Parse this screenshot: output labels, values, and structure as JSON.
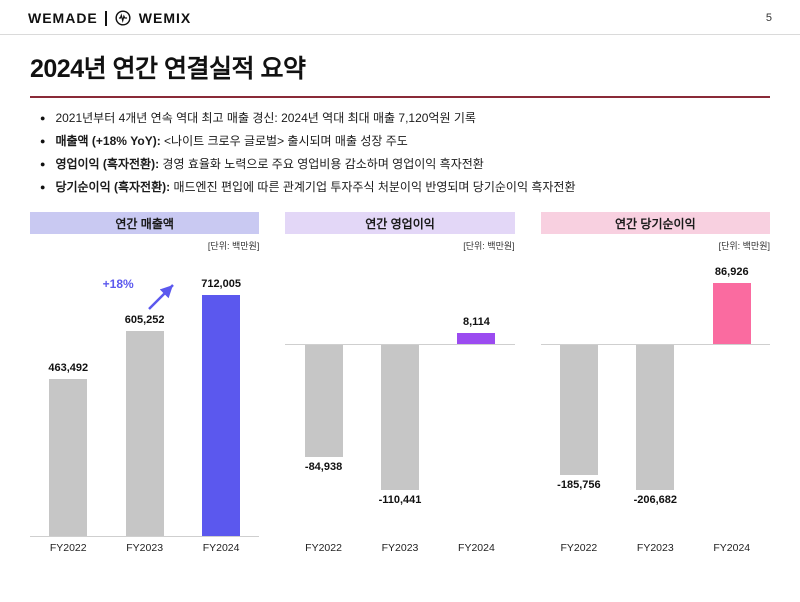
{
  "header": {
    "logo_wemade": "WEMADE",
    "logo_wemix": "WEMIX",
    "page_number": "5"
  },
  "title": "2024년 연간 연결실적 요약",
  "title_rule_color": "#8a2a38",
  "bullets": [
    {
      "lead": "",
      "text": "2021년부터 4개년 연속 역대 최고 매출 경신: 2024년 역대 최대 매출 7,120억원 기록"
    },
    {
      "lead": "매출액 (+18% YoY): ",
      "text": "<나이트 크로우 글로벌> 출시되며 매출 성장 주도"
    },
    {
      "lead": "영업이익 (흑자전환): ",
      "text": "경영 효율화 노력으로 주요 영업비용 감소하며 영업이익 흑자전환"
    },
    {
      "lead": "당기순이익 (흑자전환): ",
      "text": "매드엔진 편입에 따른 관계기업 투자주식 처분이익 반영되며 당기순이익 흑자전환"
    }
  ],
  "chart_data": [
    {
      "type": "bar",
      "title": "연간 매출액",
      "unit": "[단위: 백만원]",
      "categories": [
        "FY2022",
        "FY2023",
        "FY2024"
      ],
      "values": [
        463492,
        605252,
        712005
      ],
      "value_labels": [
        "463,492",
        "605,252",
        "712,005"
      ],
      "bar_colors": [
        "#c6c6c6",
        "#c6c6c6",
        "#5b58ee"
      ],
      "header_bg": "#c9c9f2",
      "ylim": [
        0,
        780000
      ],
      "annotation": {
        "text": "+18%",
        "color": "#5b58ee"
      }
    },
    {
      "type": "bar",
      "title": "연간 영업이익",
      "unit": "[단위: 백만원]",
      "categories": [
        "FY2022",
        "FY2023",
        "FY2024"
      ],
      "values": [
        -84938,
        -110441,
        8114
      ],
      "value_labels": [
        "-84,938",
        "-110,441",
        "8,114"
      ],
      "bar_colors": [
        "#c6c6c6",
        "#c6c6c6",
        "#9b4bf0"
      ],
      "header_bg": "#e3d7f7",
      "ylim": [
        -140000,
        60000
      ]
    },
    {
      "type": "bar",
      "title": "연간 당기순이익",
      "unit": "[단위: 백만원]",
      "categories": [
        "FY2022",
        "FY2023",
        "FY2024"
      ],
      "values": [
        -185756,
        -206682,
        86926
      ],
      "value_labels": [
        "-185,756",
        "-206,682",
        "86,926"
      ],
      "bar_colors": [
        "#c6c6c6",
        "#c6c6c6",
        "#fa6ba0"
      ],
      "header_bg": "#f8d0e0",
      "ylim": [
        -260000,
        120000
      ]
    }
  ]
}
